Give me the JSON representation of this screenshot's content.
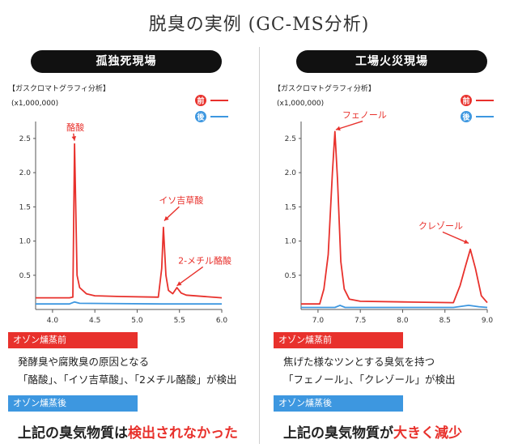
{
  "title": "脱臭の実例 (GC-MS分析)",
  "colors": {
    "before": "#e8312c",
    "after": "#3d97e0",
    "red_label": "#e8312c",
    "blue_label": "#3d97e0"
  },
  "legend": {
    "before": "前",
    "after": "後"
  },
  "panels": [
    {
      "heading": "孤独死現場",
      "chart_caption": "【ガスクロマトグラフィ分析】",
      "scale_note": "(x1,000,000)",
      "before_label": "オゾン燻蒸前",
      "after_label": "オゾン燻蒸後",
      "desc_line1": "発酵臭や腐敗臭の原因となる",
      "desc_line2": "「酪酸」、「イソ吉草酸」、「2メチル酪酸」が検出",
      "result_prefix": "上記の臭気物質は",
      "result_highlight": "検出されなかった",
      "result_suffix": ""
    },
    {
      "heading": "工場火災現場",
      "chart_caption": "【ガスクロマトグラフィ分析】",
      "scale_note": "(x1,000,000)",
      "before_label": "オゾン燻蒸前",
      "after_label": "オゾン燻蒸後",
      "desc_line1": "焦げた様なツンとする臭気を持つ",
      "desc_line2": "「フェノール」、「クレゾール」が検出",
      "result_prefix": "上記の臭気物質が",
      "result_highlight": "大きく減少",
      "result_suffix": ""
    }
  ],
  "chart_data": [
    {
      "type": "line",
      "xlim": [
        3.8,
        6.0
      ],
      "ylim": [
        0,
        2.7
      ],
      "x_ticks": [
        "4.0",
        "4.5",
        "5.0",
        "5.5",
        "6.0"
      ],
      "y_ticks": [
        "0.5",
        "1.0",
        "1.5",
        "2.0",
        "2.5"
      ],
      "series": [
        {
          "name": "前",
          "color": "#e8312c",
          "x": [
            3.8,
            4.2,
            4.24,
            4.26,
            4.29,
            4.32,
            4.4,
            4.5,
            4.8,
            5.25,
            5.29,
            5.31,
            5.34,
            5.37,
            5.42,
            5.47,
            5.52,
            5.58,
            6.0
          ],
          "y": [
            0.17,
            0.17,
            0.18,
            2.42,
            0.5,
            0.32,
            0.23,
            0.2,
            0.19,
            0.18,
            0.6,
            1.2,
            0.5,
            0.28,
            0.23,
            0.32,
            0.24,
            0.21,
            0.17
          ]
        },
        {
          "name": "後",
          "color": "#3d97e0",
          "x": [
            3.8,
            4.2,
            4.26,
            4.32,
            5.3,
            5.6,
            6.0
          ],
          "y": [
            0.08,
            0.08,
            0.11,
            0.09,
            0.08,
            0.08,
            0.08
          ]
        }
      ],
      "annotations": [
        {
          "text": "酪酸",
          "x": 4.26,
          "y": 2.42,
          "tx": 4.27,
          "ty": 2.62
        },
        {
          "text": "イソ吉草酸",
          "x": 5.32,
          "y": 1.25,
          "tx": 5.52,
          "ty": 1.55
        },
        {
          "text": "2-メチル酪酸",
          "x": 5.47,
          "y": 0.3,
          "tx": 5.8,
          "ty": 0.67
        }
      ]
    },
    {
      "type": "line",
      "xlim": [
        6.8,
        9.0
      ],
      "ylim": [
        0,
        2.7
      ],
      "x_ticks": [
        "7.0",
        "7.5",
        "8.0",
        "8.5",
        "9.0"
      ],
      "y_ticks": [
        "0.5",
        "1.0",
        "1.5",
        "2.0",
        "2.5"
      ],
      "series": [
        {
          "name": "前",
          "color": "#e8312c",
          "x": [
            6.8,
            7.02,
            7.07,
            7.12,
            7.17,
            7.2,
            7.23,
            7.27,
            7.31,
            7.37,
            7.5,
            8.0,
            8.6,
            8.68,
            8.74,
            8.8,
            8.86,
            8.93,
            9.0
          ],
          "y": [
            0.08,
            0.08,
            0.3,
            0.8,
            2.0,
            2.6,
            1.9,
            0.7,
            0.3,
            0.15,
            0.12,
            0.11,
            0.1,
            0.35,
            0.62,
            0.88,
            0.6,
            0.2,
            0.1
          ]
        },
        {
          "name": "後",
          "color": "#3d97e0",
          "x": [
            6.8,
            7.2,
            7.26,
            7.32,
            8.6,
            8.78,
            8.9,
            9.0
          ],
          "y": [
            0.03,
            0.03,
            0.06,
            0.03,
            0.03,
            0.06,
            0.04,
            0.03
          ]
        }
      ],
      "annotations": [
        {
          "text": "フェノール",
          "x": 7.21,
          "y": 2.58,
          "tx": 7.55,
          "ty": 2.8
        },
        {
          "text": "クレゾール",
          "x": 8.78,
          "y": 0.92,
          "tx": 8.45,
          "ty": 1.18
        }
      ]
    }
  ]
}
